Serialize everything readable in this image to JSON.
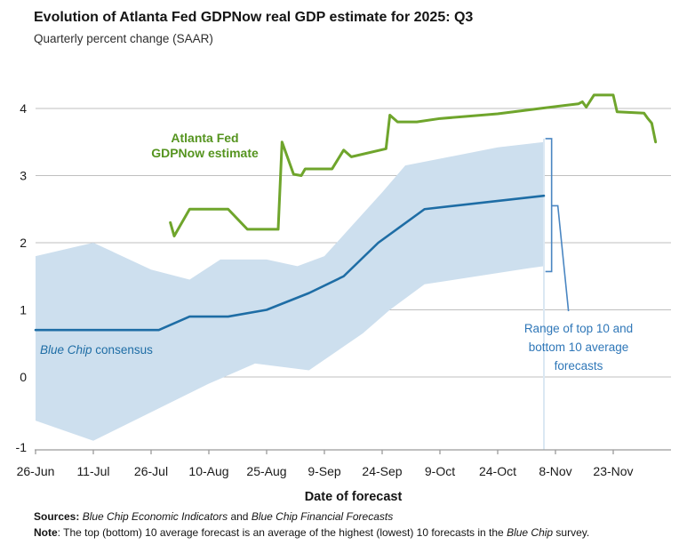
{
  "header": {
    "title": "Evolution of Atlanta Fed GDPNow real GDP estimate for 2025: Q3",
    "subtitle": "Quarterly percent change (SAAR)"
  },
  "chart_data": {
    "type": "line",
    "x_axis": {
      "label": "Date of forecast",
      "tick_labels": [
        "26-Jun",
        "11-Jul",
        "26-Jul",
        "10-Aug",
        "25-Aug",
        "9-Sep",
        "24-Sep",
        "9-Oct",
        "24-Oct",
        "8-Nov",
        "23-Nov"
      ]
    },
    "y_axis": {
      "ticks": [
        4,
        3,
        2,
        1,
        0,
        -1
      ],
      "range": [
        -1,
        4.3
      ],
      "grid": true
    },
    "colors": {
      "gdpnow_line": "#6fa52c",
      "gdpnow_text": "#55941f",
      "bluechip_line": "#1e6da5",
      "band": "#cddfee",
      "annotation": "#4a86c2",
      "annotation_text": "#2f77b8"
    },
    "series": [
      {
        "id": "bluechip",
        "name": "Blue Chip consensus",
        "color": "#1e6da5",
        "width": 2.6,
        "points": [
          [
            "Jun 26",
            0.7
          ],
          [
            "Jul 28",
            0.7
          ],
          [
            "Aug 5",
            0.9
          ],
          [
            "Aug 15",
            0.9
          ],
          [
            "Aug 25",
            1.0
          ],
          [
            "Sep 5",
            1.25
          ],
          [
            "Sep 14",
            1.5
          ],
          [
            "Sep 23",
            2.0
          ],
          [
            "Oct 5",
            2.5
          ],
          [
            "Nov 5",
            2.7
          ]
        ]
      },
      {
        "id": "gdpnow",
        "name": "Atlanta Fed GDPNow estimate",
        "color": "#6fa52c",
        "width": 3,
        "points": [
          [
            "Jul 31",
            2.3
          ],
          [
            "Aug 1",
            2.1
          ],
          [
            "Aug 5",
            2.5
          ],
          [
            "Aug 15",
            2.5
          ],
          [
            "Aug 20",
            2.2
          ],
          [
            "Aug 28",
            2.2
          ],
          [
            "Aug 29",
            3.5
          ],
          [
            "Sep 1",
            3.02
          ],
          [
            "Sep 3",
            3.0
          ],
          [
            "Sep 4",
            3.1
          ],
          [
            "Sep 11",
            3.1
          ],
          [
            "Sep 14",
            3.38
          ],
          [
            "Sep 16",
            3.28
          ],
          [
            "Sep 25",
            3.4
          ],
          [
            "Sep 26",
            3.9
          ],
          [
            "Sep 28",
            3.8
          ],
          [
            "Oct 3",
            3.8
          ],
          [
            "Oct 9",
            3.85
          ],
          [
            "Oct 24",
            3.92
          ],
          [
            "Nov 4",
            4.0
          ],
          [
            "Nov 14",
            4.07
          ],
          [
            "Nov 15",
            4.1
          ],
          [
            "Nov 16",
            4.02
          ],
          [
            "Nov 18",
            4.2
          ],
          [
            "Nov 23",
            4.2
          ],
          [
            "Nov 24",
            3.95
          ],
          [
            "Dec 1",
            3.93
          ],
          [
            "Dec 2",
            3.85
          ],
          [
            "Dec 3",
            3.78
          ],
          [
            "Dec 4",
            3.5
          ]
        ]
      }
    ],
    "band": {
      "name": "Range of top 10 and bottom 10 average forecasts",
      "end_date": "Nov 5",
      "top": [
        [
          "Jun 26",
          1.8
        ],
        [
          "Jul 11",
          2.0
        ],
        [
          "Jul 26",
          1.6
        ],
        [
          "Aug 5",
          1.45
        ],
        [
          "Aug 13",
          1.75
        ],
        [
          "Aug 25",
          1.75
        ],
        [
          "Sep 2",
          1.65
        ],
        [
          "Sep 9",
          1.8
        ],
        [
          "Sep 24",
          2.75
        ],
        [
          "Sep 30",
          3.15
        ],
        [
          "Oct 24",
          3.42
        ],
        [
          "Nov 5",
          3.5
        ]
      ],
      "bottom": [
        [
          "Jun 26",
          -0.65
        ],
        [
          "Jul 11",
          -0.95
        ],
        [
          "Aug 10",
          -0.1
        ],
        [
          "Aug 22",
          0.2
        ],
        [
          "Sep 5",
          0.1
        ],
        [
          "Sep 19",
          0.65
        ],
        [
          "Sep 26",
          1.0
        ],
        [
          "Oct 5",
          1.38
        ],
        [
          "Nov 1",
          1.62
        ],
        [
          "Nov 5",
          1.65
        ]
      ]
    },
    "annotations": {
      "gdpnow_label": "Atlanta Fed\nGDPNow estimate",
      "bluechip_label_italic": "Blue Chip",
      "bluechip_label_rest": " consensus",
      "range_label": "Range of top 10 and bottom 10 average forecasts",
      "bracket": {
        "date": "Nov 7",
        "top": 3.55,
        "bottom": 1.57,
        "mid": 2.55
      }
    }
  },
  "footer": {
    "sources_label": "Sources: ",
    "source1": "Blue Chip Economic Indicators",
    "and_text": " and ",
    "source2": "Blue Chip Financial Forecasts",
    "note_label": "Note",
    "note_text1": ": The top (bottom) 10 average forecast is an average of the highest (lowest) 10 forecasts in the ",
    "note_italic": "Blue Chip",
    "note_text2": " survey."
  }
}
